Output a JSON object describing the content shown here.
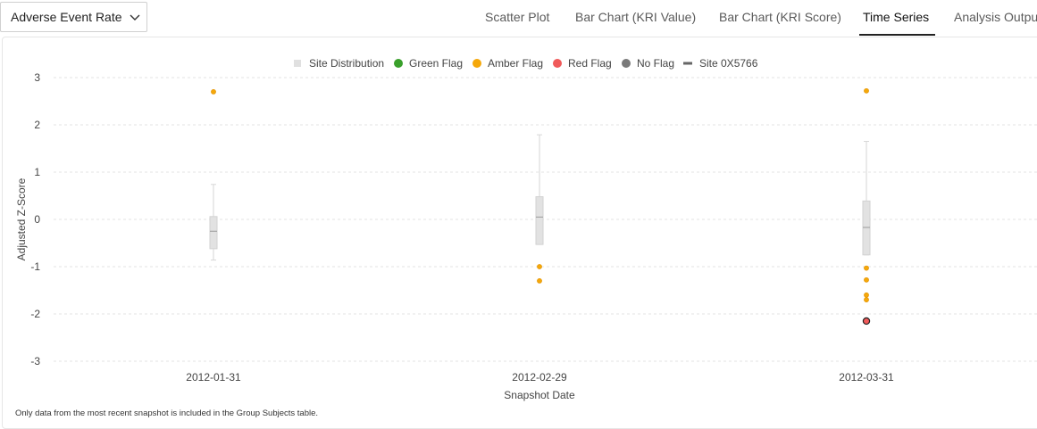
{
  "kri_selector": {
    "selected": "Adverse Event Rate",
    "icon": "chevron-down-icon"
  },
  "tabs": [
    {
      "label": "Scatter Plot",
      "active": false
    },
    {
      "label": "Bar Chart (KRI Value)",
      "active": false
    },
    {
      "label": "Bar Chart (KRI Score)",
      "active": false
    },
    {
      "label": "Time Series",
      "active": true
    },
    {
      "label": "Analysis Output",
      "active": false
    }
  ],
  "chart_data": {
    "type": "boxplot",
    "xlabel": "Snapshot Date",
    "ylabel": "Adjusted Z-Score",
    "ylim": [
      -3.3,
      3.3
    ],
    "yticks": [
      3,
      2,
      1,
      0,
      -1,
      -2,
      -3
    ],
    "grid": true,
    "legend_position": "top-center",
    "legend": [
      {
        "label": "Site Distribution",
        "marker": "square",
        "color": "#e0e0e0"
      },
      {
        "label": "Green Flag",
        "marker": "circle",
        "color": "#3aa02b"
      },
      {
        "label": "Amber Flag",
        "marker": "circle",
        "color": "#f5a80a"
      },
      {
        "label": "Red Flag",
        "marker": "circle",
        "color": "#f05a5a"
      },
      {
        "label": "No Flag",
        "marker": "circle",
        "color": "#7a7a7a"
      },
      {
        "label": "Site 0X5766",
        "marker": "line",
        "color": "#666666"
      }
    ],
    "categories": [
      "2012-01-31",
      "2012-02-29",
      "2012-03-31"
    ],
    "boxes": [
      {
        "whisker_low": -0.86,
        "q1": -0.62,
        "median": -0.25,
        "q3": 0.06,
        "whisker_high": 0.74
      },
      {
        "whisker_low": -0.53,
        "q1": -0.53,
        "median": 0.05,
        "q3": 0.48,
        "whisker_high": 1.79
      },
      {
        "whisker_low": -0.75,
        "q1": -0.75,
        "median": -0.17,
        "q3": 0.39,
        "whisker_high": 1.65
      }
    ],
    "amber_points": [
      {
        "category": "2012-01-31",
        "values": [
          2.7
        ]
      },
      {
        "category": "2012-02-29",
        "values": [
          -1.0,
          -1.3
        ]
      },
      {
        "category": "2012-03-31",
        "values": [
          2.72,
          -1.03,
          -1.28,
          -1.6,
          -1.7
        ]
      }
    ],
    "highlighted_site": {
      "label": "Site 0X5766",
      "flag": "Red Flag",
      "points": [
        {
          "category": "2012-03-31",
          "value": -2.15
        }
      ]
    }
  },
  "footnote": "Only data from the most recent snapshot is included in the Group Subjects table."
}
